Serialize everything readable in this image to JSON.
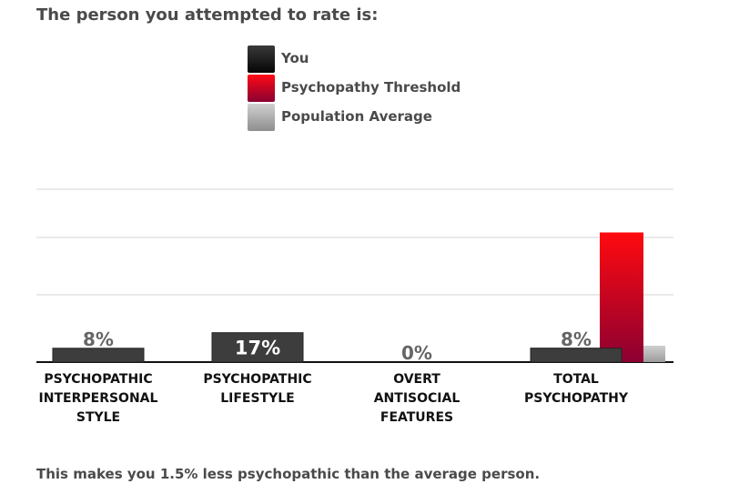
{
  "heading": "The person you attempted to rate is:",
  "legend": [
    {
      "label": "You",
      "color": "#1f1f1f"
    },
    {
      "label": "Psychopathy Threshold",
      "color": "#c8001e"
    },
    {
      "label": "Population Average",
      "color": "#a9a9a9"
    }
  ],
  "chart_data": {
    "type": "bar",
    "categories": [
      [
        "PSYCHOPATHIC",
        "INTERPERSONAL",
        "STYLE"
      ],
      [
        "PSYCHOPATHIC",
        "LIFESTYLE"
      ],
      [
        "OVERT",
        "ANTISOCIAL",
        "FEATURES"
      ],
      [
        "TOTAL",
        "PSYCHOPATHY"
      ]
    ],
    "series": [
      {
        "name": "You",
        "values": [
          8,
          17,
          0,
          8
        ],
        "value_labels": [
          "8%",
          "17%",
          "0%",
          "8%"
        ]
      },
      {
        "name": "Psychopathy Threshold",
        "values": [
          null,
          null,
          null,
          75
        ]
      },
      {
        "name": "Population Average",
        "values": [
          null,
          null,
          null,
          9.5
        ]
      }
    ],
    "ylim": [
      0,
      100
    ],
    "grid": true
  },
  "footer": "This makes you 1.5% less psychopathic than the average person."
}
